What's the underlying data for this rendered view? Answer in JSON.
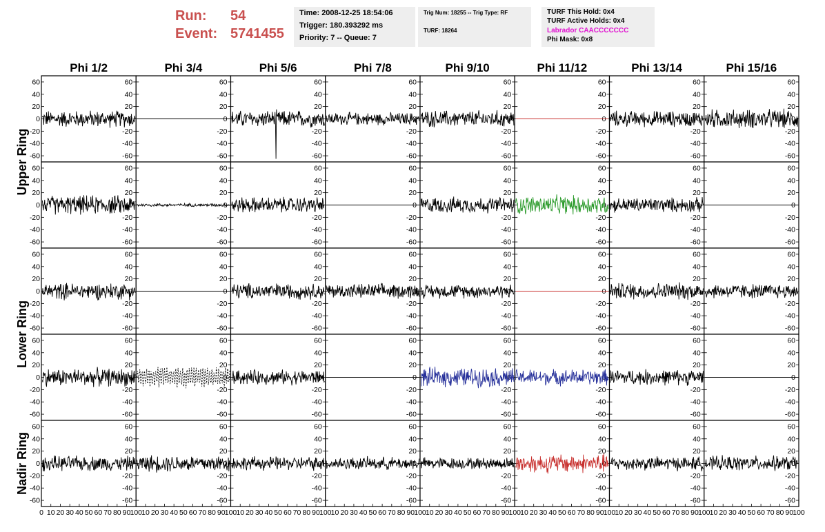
{
  "header": {
    "run_label": "Run:",
    "run_value": "54",
    "event_label": "Event:",
    "event_value": "5741455",
    "time": "Time: 2008-12-25 18:54:06",
    "trigger": "Trigger: 180.393292 ms",
    "priority": "Priority: 7 -- Queue: 7",
    "trig_num": "Trig Num: 18255 -- Trig Type: RF",
    "turf": "TURF: 18264",
    "turf_this_hold": "TURF This Hold: 0x4",
    "turf_active_holds": "TURF Active Holds: 0x4",
    "labrador": "Labrador CAACCCCCCC",
    "phi_mask": "Phi Mask: 0x8"
  },
  "colors": {
    "header_red": "#c9504f",
    "magenta": "#e012d0",
    "green": "#2a9a2a",
    "blue": "#26309a",
    "red": "#c8302e",
    "black": "#000000"
  },
  "chart_data": {
    "type": "line",
    "columns": [
      "Phi 1/2",
      "Phi 3/4",
      "Phi 5/6",
      "Phi 7/8",
      "Phi 9/10",
      "Phi 11/12",
      "Phi 13/14",
      "Phi 15/16"
    ],
    "row_groups": [
      {
        "label": "Upper Ring",
        "rows": [
          0,
          1
        ]
      },
      {
        "label": "Lower Ring",
        "rows": [
          2,
          3
        ]
      },
      {
        "label": "Nadir Ring",
        "rows": [
          4
        ]
      }
    ],
    "xlim": [
      0,
      100
    ],
    "ylim": [
      -70,
      70
    ],
    "y_ticks": [
      -60,
      -40,
      -20,
      0,
      20,
      40,
      60
    ],
    "x_ticks": [
      0,
      10,
      20,
      30,
      40,
      50,
      60,
      70,
      80,
      90,
      100
    ],
    "x_tick_labels": [
      "0",
      "10",
      "20",
      "30",
      "40",
      "50",
      "60",
      "70",
      "80",
      "90",
      "100"
    ],
    "traces": [
      [
        {
          "style": "noise",
          "amp": 16,
          "color": "black"
        },
        {
          "style": "flat",
          "color": "black"
        },
        {
          "style": "noise",
          "amp": 16,
          "color": "black",
          "spike": -65
        },
        {
          "style": "noise",
          "amp": 12,
          "color": "black"
        },
        {
          "style": "noise",
          "amp": 16,
          "color": "black"
        },
        {
          "style": "flat",
          "color": "red"
        },
        {
          "style": "noise",
          "amp": 15,
          "color": "black"
        },
        {
          "style": "noise",
          "amp": 18,
          "color": "black"
        }
      ],
      [
        {
          "style": "noise",
          "amp": 18,
          "color": "black"
        },
        {
          "style": "small",
          "amp": 3,
          "color": "black"
        },
        {
          "style": "noise",
          "amp": 15,
          "color": "black"
        },
        {
          "style": "flat",
          "color": "black"
        },
        {
          "style": "noise",
          "amp": 15,
          "color": "black"
        },
        {
          "style": "noise",
          "amp": 18,
          "color": "green"
        },
        {
          "style": "noise",
          "amp": 14,
          "color": "black"
        },
        {
          "style": "flat",
          "color": "black"
        }
      ],
      [
        {
          "style": "noise",
          "amp": 16,
          "color": "black"
        },
        {
          "style": "flat",
          "color": "black"
        },
        {
          "style": "noise",
          "amp": 15,
          "color": "black"
        },
        {
          "style": "noise",
          "amp": 14,
          "color": "black"
        },
        {
          "style": "noise",
          "amp": 13,
          "color": "black"
        },
        {
          "style": "flat",
          "color": "red"
        },
        {
          "style": "noise",
          "amp": 16,
          "color": "black"
        },
        {
          "style": "noise",
          "amp": 14,
          "color": "black"
        }
      ],
      [
        {
          "style": "noise",
          "amp": 17,
          "color": "black"
        },
        {
          "style": "dashed",
          "amp": 18,
          "color": "black"
        },
        {
          "style": "noise",
          "amp": 14,
          "color": "black"
        },
        {
          "style": "flat",
          "color": "black"
        },
        {
          "style": "noise",
          "amp": 18,
          "color": "blue"
        },
        {
          "style": "noise",
          "amp": 15,
          "color": "blue"
        },
        {
          "style": "noise",
          "amp": 15,
          "color": "black"
        },
        {
          "style": "flat",
          "color": "black"
        }
      ],
      [
        {
          "style": "noise",
          "amp": 14,
          "color": "black"
        },
        {
          "style": "noise",
          "amp": 16,
          "color": "black"
        },
        {
          "style": "noise",
          "amp": 13,
          "color": "black"
        },
        {
          "style": "noise",
          "amp": 12,
          "color": "black"
        },
        {
          "style": "noise",
          "amp": 11,
          "color": "black"
        },
        {
          "style": "noise",
          "amp": 18,
          "color": "red"
        },
        {
          "style": "noise",
          "amp": 13,
          "color": "black"
        },
        {
          "style": "noise",
          "amp": 14,
          "color": "black"
        }
      ]
    ]
  }
}
